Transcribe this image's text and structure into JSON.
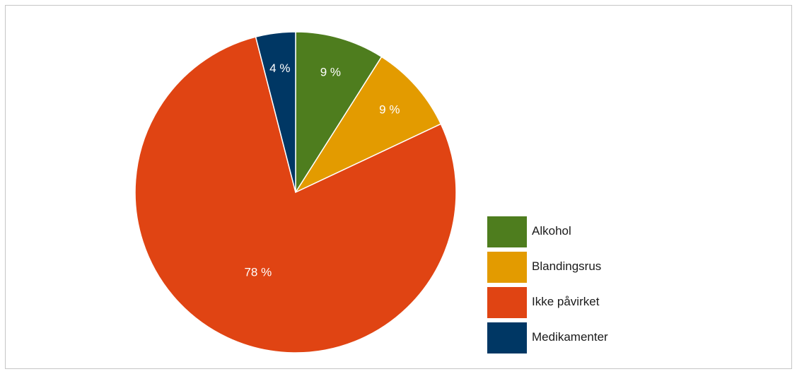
{
  "chart_data": {
    "type": "pie",
    "title": "",
    "slices": [
      {
        "name": "Alkohol",
        "value": 9,
        "label": "9 %",
        "color": "#4e7d1e"
      },
      {
        "name": "Blandingsrus",
        "value": 9,
        "label": "9 %",
        "color": "#e39b00"
      },
      {
        "name": "Ikke påvirket",
        "value": 78,
        "label": "78 %",
        "color": "#e04413"
      },
      {
        "name": "Medikamenter",
        "value": 4,
        "label": "4 %",
        "color": "#003764"
      }
    ],
    "start_angle": "12 o'clock",
    "direction": "clockwise",
    "legend_position": "right"
  },
  "legend": {
    "items": [
      {
        "label": "Alkohol",
        "color": "#4e7d1e"
      },
      {
        "label": "Blandingsrus",
        "color": "#e39b00"
      },
      {
        "label": "Ikke påvirket",
        "color": "#e04413"
      },
      {
        "label": "Medikamenter",
        "color": "#003764"
      }
    ]
  }
}
